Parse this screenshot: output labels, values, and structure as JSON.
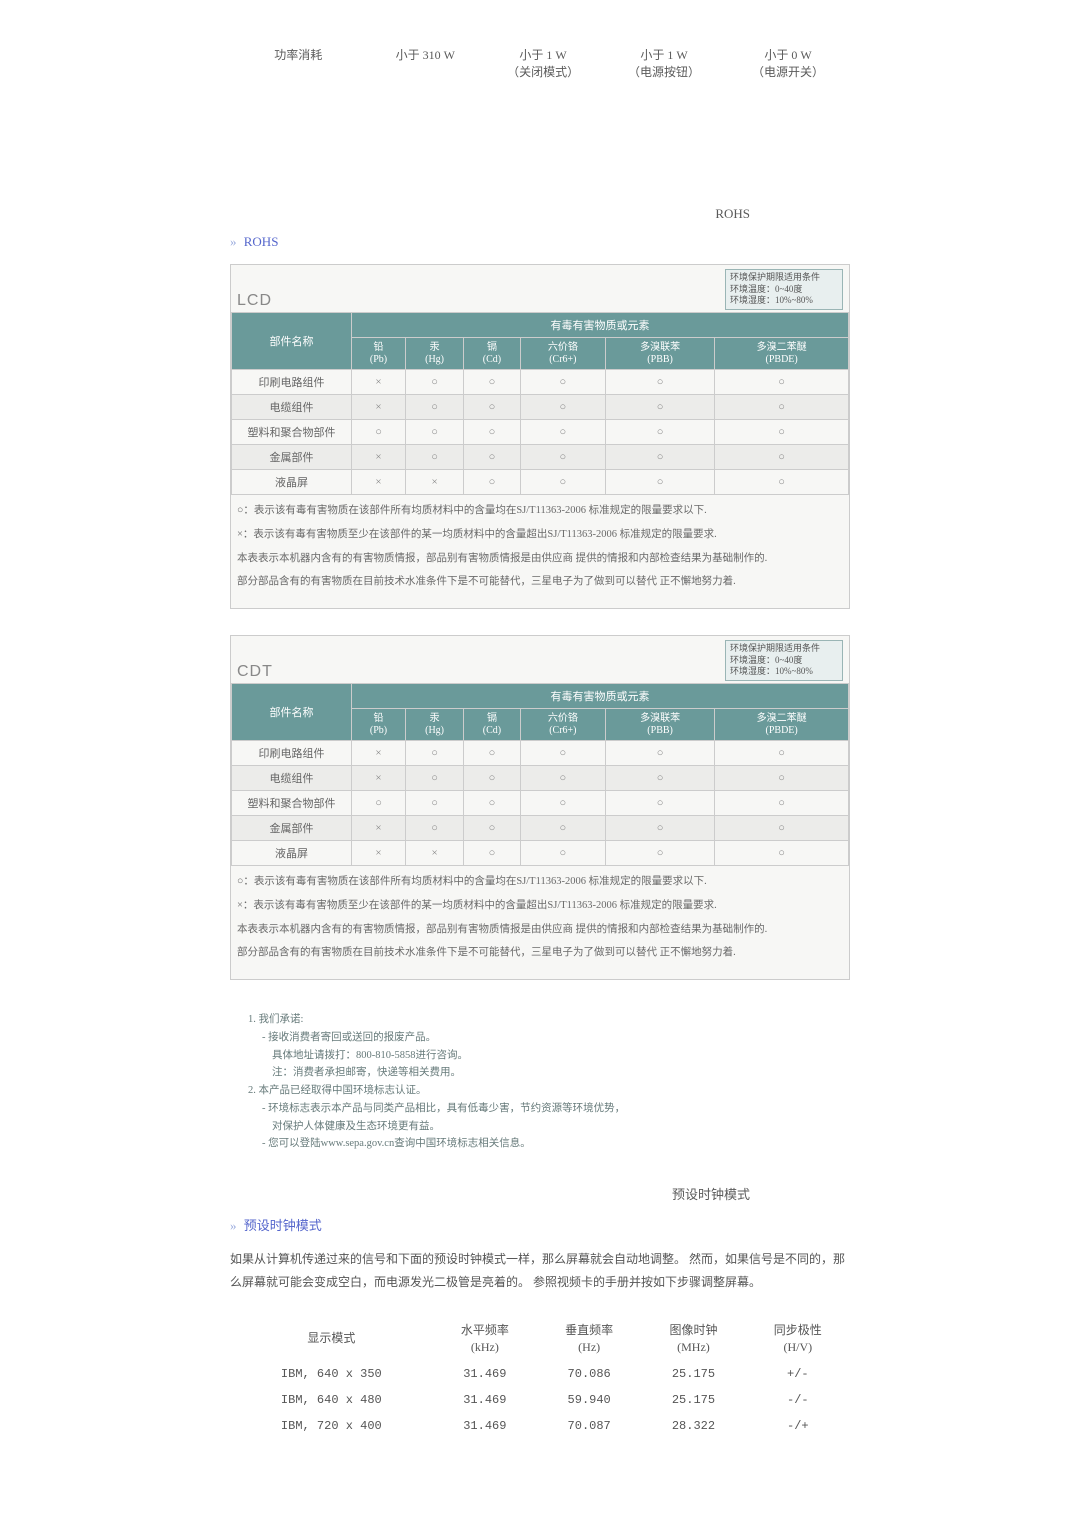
{
  "power": {
    "row_label": "功率消耗",
    "cols": [
      {
        "top": "小于 310 W",
        "bottom": ""
      },
      {
        "top": "小于 1 W",
        "bottom": "（关闭模式）"
      },
      {
        "top": "小于 1 W",
        "bottom": "（电源按钮）"
      },
      {
        "top": "小于 0 W",
        "bottom": "（电源开关）"
      }
    ]
  },
  "rohs_label_right": "ROHS",
  "rohs_header": "ROHS",
  "env_box": {
    "l1": "环境保护期限适用条件",
    "l2": "环境温度：0~40度",
    "l3": "环境湿度：10%~80%"
  },
  "substance_header": "有毒有害物质或元素",
  "partname_header": "部件名称",
  "subcols": [
    {
      "t": "铅",
      "b": "(Pb)"
    },
    {
      "t": "汞",
      "b": "(Hg)"
    },
    {
      "t": "镉",
      "b": "(Cd)"
    },
    {
      "t": "六价铬",
      "b": "(Cr6+)"
    },
    {
      "t": "多溴联苯",
      "b": "(PBB)"
    },
    {
      "t": "多溴二苯醚",
      "b": "(PBDE)"
    }
  ],
  "lcd": {
    "title": "LCD",
    "rows": [
      {
        "name": "印刷电路组件",
        "v": [
          "×",
          "○",
          "○",
          "○",
          "○",
          "○"
        ],
        "alt": false
      },
      {
        "name": "电缆组件",
        "v": [
          "×",
          "○",
          "○",
          "○",
          "○",
          "○"
        ],
        "alt": true
      },
      {
        "name": "塑料和聚合物部件",
        "v": [
          "○",
          "○",
          "○",
          "○",
          "○",
          "○"
        ],
        "alt": false
      },
      {
        "name": "金属部件",
        "v": [
          "×",
          "○",
          "○",
          "○",
          "○",
          "○"
        ],
        "alt": true
      },
      {
        "name": "液晶屏",
        "v": [
          "×",
          "×",
          "○",
          "○",
          "○",
          "○"
        ],
        "alt": false
      }
    ]
  },
  "cdt": {
    "title": "CDT",
    "rows": [
      {
        "name": "印刷电路组件",
        "v": [
          "×",
          "○",
          "○",
          "○",
          "○",
          "○"
        ],
        "alt": false
      },
      {
        "name": "电缆组件",
        "v": [
          "×",
          "○",
          "○",
          "○",
          "○",
          "○"
        ],
        "alt": true
      },
      {
        "name": "塑料和聚合物部件",
        "v": [
          "○",
          "○",
          "○",
          "○",
          "○",
          "○"
        ],
        "alt": false
      },
      {
        "name": "金属部件",
        "v": [
          "×",
          "○",
          "○",
          "○",
          "○",
          "○"
        ],
        "alt": true
      },
      {
        "name": "液晶屏",
        "v": [
          "×",
          "×",
          "○",
          "○",
          "○",
          "○"
        ],
        "alt": false
      }
    ]
  },
  "rohs_notes": {
    "p1": "○：表示该有毒有害物质在该部件所有均质材料中的含量均在SJ/T11363-2006 标准规定的限量要求以下.",
    "p2": "×：表示该有毒有害物质至少在该部件的某一均质材料中的含量超出SJ/T11363-2006 标准规定的限量要求.",
    "p3": "本表表示本机器内含有的有害物质情报，部品别有害物质情报是由供应商 提供的情报和内部检查结果为基础制作的.",
    "p4": "部分部品含有的有害物质在目前技术水准条件下是不可能替代，三星电子为了做到可以替代 正不懈地努力着."
  },
  "pledge": {
    "l1": "1. 我们承诺:",
    "l1a": "- 接收消费者寄回或送回的报废产品。",
    "l1b": "具体地址请拨打：800-810-5858进行咨询。",
    "l1c": "注：消费者承担邮寄，快递等相关费用。",
    "l2": "2. 本产品已经取得中国环境标志认证。",
    "l2a": "- 环境标志表示本产品与同类产品相比，具有低毒少害，节约资源等环境优势，",
    "l2b": "对保护人体健康及生态环境更有益。",
    "l2c": "- 您可以登陆www.sepa.gov.cn查询中国环境标志相关信息。"
  },
  "clock_label_right": "预设时钟模式",
  "clock_header": "预设时钟模式",
  "clock_intro": "如果从计算机传递过来的信号和下面的预设时钟模式一样，那么屏幕就会自动地调整。 然而，如果信号是不同的，那么屏幕就可能会变成空白，而电源发光二极管是亮着的。 参照视频卡的手册并按如下步骤调整屏幕。",
  "clock_table": {
    "headers": [
      {
        "t": "显示模式",
        "b": ""
      },
      {
        "t": "水平频率",
        "b": "(kHz)"
      },
      {
        "t": "垂直频率",
        "b": "(Hz)"
      },
      {
        "t": "图像时钟",
        "b": "(MHz)"
      },
      {
        "t": "同步极性",
        "b": "(H/V)"
      }
    ],
    "rows": [
      {
        "c": [
          "IBM, 640 x 350",
          "31.469",
          "70.086",
          "25.175",
          "+/-"
        ]
      },
      {
        "c": [
          "IBM, 640 x 480",
          "31.469",
          "59.940",
          "25.175",
          "-/-"
        ]
      },
      {
        "c": [
          "IBM, 720 x 400",
          "31.469",
          "70.087",
          "28.322",
          "-/+"
        ]
      }
    ]
  },
  "colors": {
    "header_bg": "#6a9a9a",
    "envbox_bg": "#e8efef",
    "link": "#5566cc",
    "grid": "#cccccc"
  }
}
